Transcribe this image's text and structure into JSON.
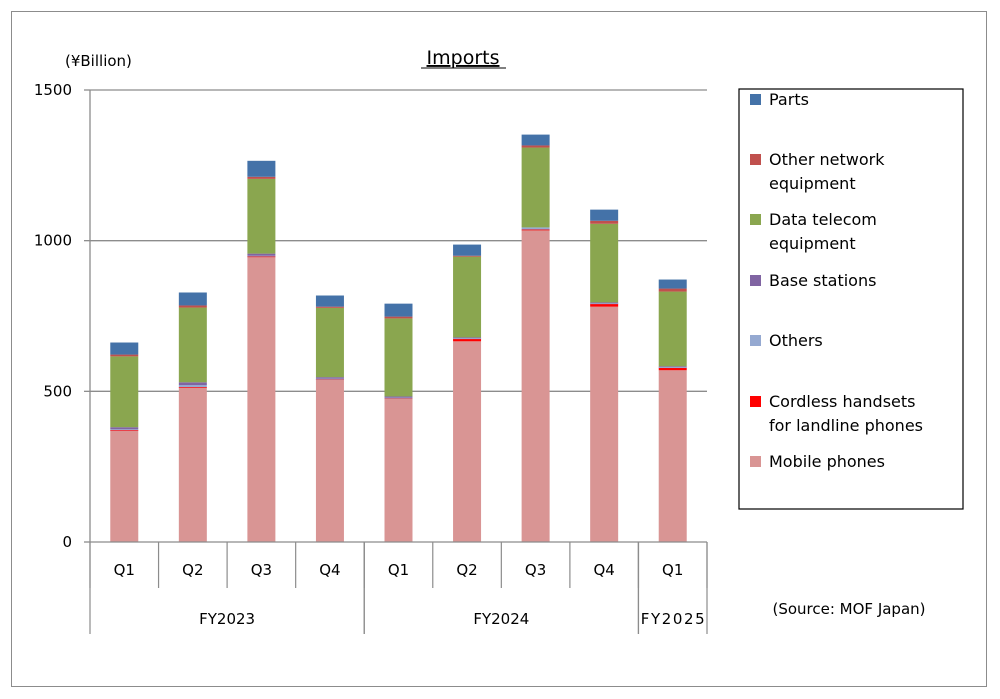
{
  "chart_data": {
    "type": "bar",
    "stacked": true,
    "title": "Imports",
    "ylabel": "(¥Billion)",
    "xlabel": "",
    "ylim": [
      0,
      1500
    ],
    "yticks": [
      0,
      500,
      1000,
      1500
    ],
    "grid": true,
    "legend_position": "right",
    "source": "(Source: MOF Japan)",
    "categories": [
      "Q1",
      "Q2",
      "Q3",
      "Q4",
      "Q1",
      "Q2",
      "Q3",
      "Q4",
      "Q1"
    ],
    "groups": [
      {
        "label": "FY2023",
        "count": 4
      },
      {
        "label": "FY2024",
        "count": 4
      },
      {
        "label": "FY2025",
        "count": 1
      }
    ],
    "series": [
      {
        "name": "Mobile phones",
        "color": "#d99594",
        "values": [
          370,
          513,
          947,
          540,
          477,
          666,
          1036,
          781,
          570
        ]
      },
      {
        "name": "Cordless handsets for landline phones",
        "color": "#ff0000",
        "values": [
          1,
          1,
          1,
          1,
          1,
          9,
          1,
          10,
          9
        ]
      },
      {
        "name": "Others",
        "color": "#95a9d1",
        "values": [
          3,
          7,
          2,
          1,
          1,
          1,
          7,
          1,
          1
        ]
      },
      {
        "name": "Base stations",
        "color": "#8064a2",
        "values": [
          7,
          9,
          7,
          5,
          4,
          3,
          0,
          3,
          3
        ]
      },
      {
        "name": "Data telecom equipment",
        "color": "#8aa64f",
        "values": [
          235,
          248,
          248,
          230,
          259,
          268,
          265,
          261,
          248
        ]
      },
      {
        "name": "Other network equipment",
        "color": "#c0504d",
        "values": [
          6,
          7,
          7,
          4,
          6,
          3,
          7,
          10,
          10
        ]
      },
      {
        "name": "Parts",
        "color": "#4472a8",
        "values": [
          40,
          43,
          53,
          37,
          43,
          37,
          36,
          37,
          30
        ]
      }
    ],
    "legend": [
      {
        "line1": "Parts",
        "line2": "",
        "color": "#4472a8"
      },
      {
        "line1": "Other network",
        "line2": "equipment",
        "color": "#c0504d"
      },
      {
        "line1": "Data telecom",
        "line2": "equipment",
        "color": "#8aa64f"
      },
      {
        "line1": "Base stations",
        "line2": "",
        "color": "#8064a2"
      },
      {
        "line1": "Others",
        "line2": "",
        "color": "#95a9d1"
      },
      {
        "line1": "Cordless handsets",
        "line2": "for landline phones",
        "color": "#ff0000"
      },
      {
        "line1": "Mobile phones",
        "line2": "",
        "color": "#d99594"
      }
    ]
  }
}
